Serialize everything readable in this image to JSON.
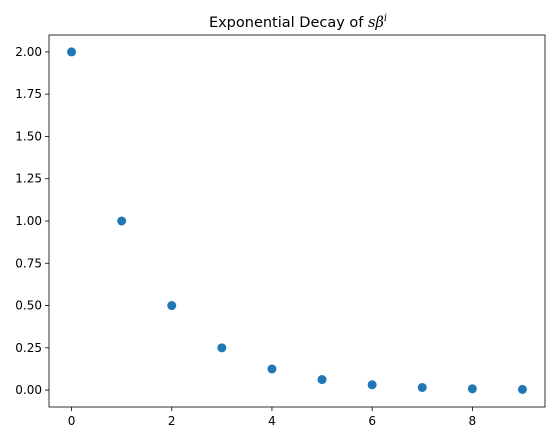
{
  "chart_data": {
    "type": "scatter",
    "title_prefix": "Exponential Decay of ",
    "title_math_base": "sβ",
    "title_math_sup": "i",
    "xlabel": "",
    "ylabel": "",
    "xlim": [
      -0.45,
      9.45
    ],
    "ylim": [
      -0.1,
      2.1
    ],
    "x_ticks": [
      0,
      2,
      4,
      6,
      8
    ],
    "y_ticks": [
      0.0,
      0.25,
      0.5,
      0.75,
      1.0,
      1.25,
      1.5,
      1.75,
      2.0
    ],
    "y_tick_labels": [
      "0.00",
      "0.25",
      "0.50",
      "0.75",
      "1.00",
      "1.25",
      "1.50",
      "1.75",
      "2.00"
    ],
    "x_tick_labels": [
      "0",
      "2",
      "4",
      "6",
      "8"
    ],
    "marker_color": "#1f77b4",
    "grid": false,
    "x": [
      0,
      1,
      2,
      3,
      4,
      5,
      6,
      7,
      8,
      9
    ],
    "y": [
      2.0,
      1.0,
      0.5,
      0.25,
      0.125,
      0.0625,
      0.03125,
      0.015625,
      0.0078125,
      0.00390625
    ]
  }
}
